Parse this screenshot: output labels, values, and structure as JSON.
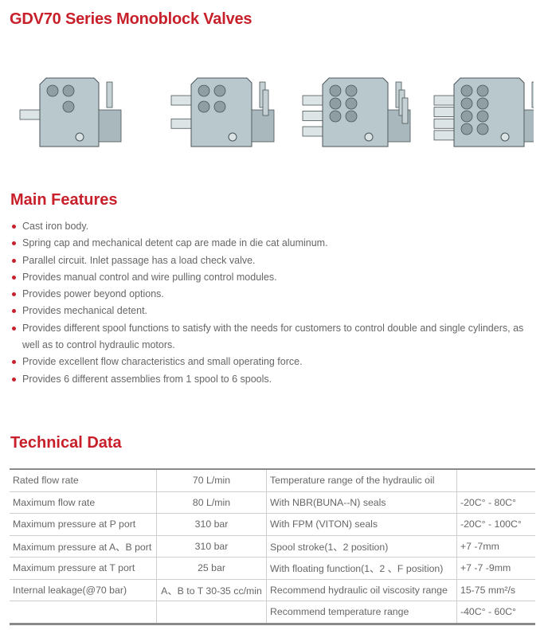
{
  "title": "GDV70 Series Monoblock Valves",
  "images": [
    {
      "name": "1-spool-valve",
      "spools": 1
    },
    {
      "name": "2-spool-valve",
      "spools": 2
    },
    {
      "name": "3-spool-valve",
      "spools": 3
    },
    {
      "name": "4-spool-valve",
      "spools": 4
    }
  ],
  "features": {
    "heading": "Main Features",
    "items": [
      "Cast iron body.",
      "Spring cap and mechanical detent cap are made in die cat aluminum.",
      "Parallel circuit.  Inlet passage has a load check valve.",
      "Provides manual control and wire pulling  control modules.",
      "Provides power beyond options.",
      "Provides mechanical detent.",
      "Provides different spool functions to satisfy with the needs for customers to control double and single cylinders, as well as to control hydraulic motors.",
      "Provide excellent flow characteristics and small operating force.",
      "Provides 6 different assemblies from 1 spool to 6 spools."
    ]
  },
  "technical": {
    "heading": "Technical Data",
    "rows": [
      [
        "Rated flow rate",
        "70 L/min",
        "Temperature range of the hydraulic oil",
        ""
      ],
      [
        "Maximum flow rate",
        "80 L/min",
        "With NBR(BUNA--N) seals",
        "-20C°  - 80C°"
      ],
      [
        "Maximum pressure at P port",
        "310 bar",
        "With FPM (VITON)  seals",
        "-20C°  - 100C°"
      ],
      [
        "Maximum pressure at A、B port",
        "310 bar",
        "Spool stroke(1、2 position)",
        "+7 -7mm"
      ],
      [
        "Maximum pressure at T port",
        "25 bar",
        "With floating function(1、2 、F position)",
        "+7 -7 -9mm"
      ],
      [
        "Internal leakage(@70 bar)",
        "A、B to T 30-35 cc/min",
        "Recommend hydraulic oil viscosity range",
        "15-75 mm²/s"
      ],
      [
        "",
        "",
        "Recommend temperature range",
        "-40C°  - 60C°"
      ]
    ]
  },
  "colors": {
    "accent": "#c8202b",
    "valve_body": "#b9c8cc"
  }
}
